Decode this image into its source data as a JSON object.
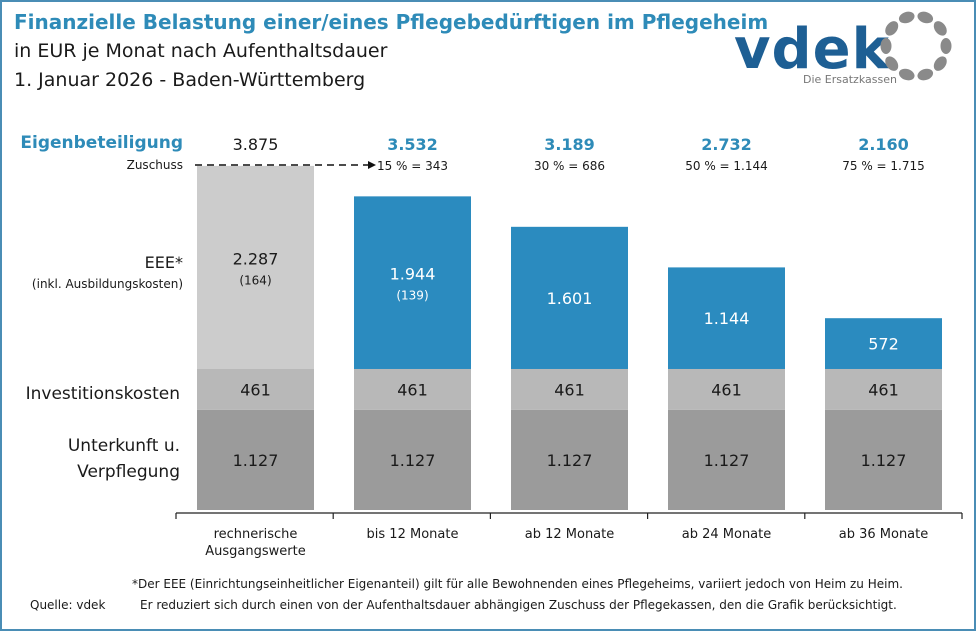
{
  "header": {
    "title": "Finanzielle Belastung einer/eines Pflegebedürftigen im Pflegeheim",
    "subtitle": "in EUR je Monat nach Aufenthaltsdauer",
    "date_region": "1. Januar 2026 - Baden-Württemberg"
  },
  "logo": {
    "text": "vdek",
    "tagline": "Die Ersatzkassen"
  },
  "colors": {
    "accent": "#2e8bb8",
    "eee_base": "#cccccc",
    "eee": "#2b8bbf",
    "invest": "#b8b8b8",
    "unterkunft": "#9b9b9b",
    "logo_blue": "#1e5f94",
    "logo_grey": "#8a8a8a"
  },
  "chart_data": {
    "type": "bar",
    "stacked": true,
    "categories": [
      "rechnerische Ausgangswerte",
      "bis 12 Monate",
      "ab 12 Monate",
      "ab 24 Monate",
      "ab 36 Monate"
    ],
    "series": [
      {
        "name": "Unterkunft u. Verpflegung",
        "values": [
          1127,
          1127,
          1127,
          1127,
          1127
        ],
        "labels": [
          "1.127",
          "1.127",
          "1.127",
          "1.127",
          "1.127"
        ]
      },
      {
        "name": "Investitionskosten",
        "values": [
          461,
          461,
          461,
          461,
          461
        ],
        "labels": [
          "461",
          "461",
          "461",
          "461",
          "461"
        ]
      },
      {
        "name": "EEE*",
        "values": [
          2287,
          1944,
          1601,
          1144,
          572
        ],
        "labels": [
          "2.287",
          "1.944",
          "1.601",
          "1.144",
          "572"
        ]
      }
    ],
    "eee_sublabel": "(inkl. Ausbildungskosten)",
    "ausbildung": [
      "(164)",
      "(139)",
      "",
      "",
      ""
    ],
    "eigenbeteiligung_label": "Eigenbeteiligung",
    "eigenbeteiligung": [
      "3.875",
      "3.532",
      "3.189",
      "2.732",
      "2.160"
    ],
    "zuschuss_label": "Zuschuss",
    "zuschuss": [
      "",
      "15 % = 343",
      "30 % = 686",
      "50 % = 1.144",
      "75 % = 1.715"
    ],
    "category_labels": [
      [
        "rechnerische",
        "Ausgangswerte"
      ],
      [
        "bis 12 Monate"
      ],
      [
        "ab 12 Monate"
      ],
      [
        "ab 24 Monate"
      ],
      [
        "ab 36 Monate"
      ]
    ],
    "row_labels": {
      "eee": "EEE*",
      "invest": "Investitionskosten",
      "unterkunft1": "Unterkunft u.",
      "unterkunft2": "Verpflegung"
    },
    "grid": false
  },
  "footer": {
    "source": "Quelle: vdek",
    "note1": "*Der EEE (Einrichtungseinheitlicher Eigenanteil) gilt für alle Bewohnenden eines Pflegeheims, variiert jedoch von Heim zu Heim.",
    "note2": "Er reduziert sich durch einen von der Aufenthaltsdauer abhängigen Zuschuss der Pflegekassen, den die Grafik berücksichtigt."
  }
}
